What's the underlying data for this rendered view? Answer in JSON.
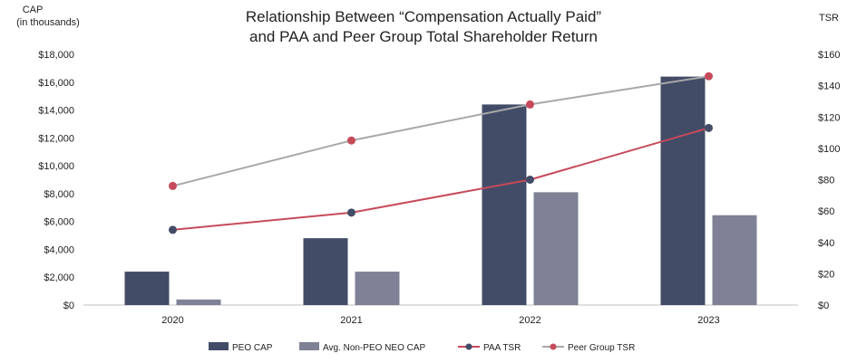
{
  "chart_data": {
    "type": "bar",
    "title": "Relationship Between “Compensation Actually Paid” and PAA and Peer Group Total Shareholder Return",
    "title_lines": [
      "Relationship Between “Compensation Actually Paid”",
      "and PAA and Peer Group Total Shareholder Return"
    ],
    "ylabel_left": [
      "CAP",
      "(in thousands)"
    ],
    "ylabel_right": "TSR",
    "categories": [
      "2020",
      "2021",
      "2022",
      "2023"
    ],
    "ylim_left": [
      0,
      18000
    ],
    "ylim_right": [
      0,
      160
    ],
    "left_ticks": [
      "$0",
      "$2,000",
      "$4,000",
      "$6,000",
      "$8,000",
      "$10,000",
      "$12,000",
      "$14,000",
      "$16,000",
      "$18,000"
    ],
    "right_ticks": [
      "$0",
      "$20",
      "$40",
      "$60",
      "$80",
      "$100",
      "$120",
      "$140",
      "$160"
    ],
    "grid": false,
    "legend_position": "bottom",
    "series": [
      {
        "name": "PEO CAP",
        "kind": "bar",
        "axis": "left",
        "color": "#434c67",
        "values": [
          2400,
          4800,
          14400,
          16400
        ]
      },
      {
        "name": "Avg. Non-PEO NEO CAP",
        "kind": "bar",
        "axis": "left",
        "color": "#7f8196",
        "values": [
          400,
          2400,
          8100,
          6450
        ]
      },
      {
        "name": "PAA TSR",
        "kind": "line",
        "axis": "right",
        "color": "#c64a5a",
        "marker": "#434c67",
        "values": [
          48,
          59,
          80,
          113
        ]
      },
      {
        "name": "Peer Group TSR",
        "kind": "line",
        "axis": "right",
        "color": "#a8a8a8",
        "marker": "#c64a5a",
        "values": [
          76,
          105,
          128,
          146
        ]
      }
    ]
  }
}
